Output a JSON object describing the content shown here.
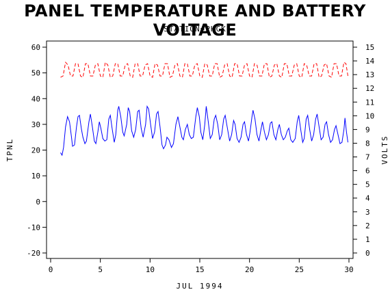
{
  "chart_data": {
    "type": "line",
    "title": "PANEL TEMPERATURE AND BATTERY VOLTAGE",
    "subtitle": "STATION=PHCK",
    "xlabel": "JUL 1994",
    "ylabel_left": "TPNL",
    "ylabel_right": "VOLTS",
    "xlim": [
      0,
      30
    ],
    "ylim_left": [
      -20,
      60
    ],
    "ylim_right": [
      0,
      15
    ],
    "x_ticks": [
      0,
      5,
      10,
      15,
      20,
      25,
      30
    ],
    "y_ticks_left": [
      -20,
      -10,
      0,
      10,
      20,
      30,
      40,
      50,
      60
    ],
    "y_ticks_right": [
      0,
      1,
      2,
      3,
      4,
      5,
      6,
      7,
      8,
      9,
      10,
      11,
      12,
      13,
      14,
      15
    ],
    "grid": false,
    "series": [
      {
        "axis": "left",
        "color": "#0000ff",
        "style": "solid",
        "points": [
          [
            1.0,
            19.0
          ],
          [
            1.15,
            18.0
          ],
          [
            1.3,
            21.0
          ],
          [
            1.5,
            29.0
          ],
          [
            1.7,
            33.0
          ],
          [
            1.9,
            31.0
          ],
          [
            2.1,
            25.0
          ],
          [
            2.2,
            21.5
          ],
          [
            2.4,
            22.0
          ],
          [
            2.6,
            29.0
          ],
          [
            2.75,
            33.0
          ],
          [
            2.9,
            33.5
          ],
          [
            3.1,
            28.0
          ],
          [
            3.25,
            25.0
          ],
          [
            3.45,
            22.5
          ],
          [
            3.6,
            23.5
          ],
          [
            3.85,
            31.0
          ],
          [
            4.0,
            34.0
          ],
          [
            4.2,
            29.0
          ],
          [
            4.4,
            23.5
          ],
          [
            4.55,
            22.5
          ],
          [
            4.75,
            27.0
          ],
          [
            4.9,
            31.0
          ],
          [
            5.05,
            28.5
          ],
          [
            5.25,
            24.5
          ],
          [
            5.45,
            23.5
          ],
          [
            5.65,
            24.0
          ],
          [
            5.85,
            32.0
          ],
          [
            6.0,
            33.5
          ],
          [
            6.2,
            28.0
          ],
          [
            6.4,
            23.0
          ],
          [
            6.55,
            26.0
          ],
          [
            6.75,
            35.5
          ],
          [
            6.85,
            37.0
          ],
          [
            7.05,
            33.0
          ],
          [
            7.25,
            27.0
          ],
          [
            7.4,
            25.5
          ],
          [
            7.65,
            30.0
          ],
          [
            7.8,
            36.5
          ],
          [
            7.95,
            35.0
          ],
          [
            8.15,
            27.5
          ],
          [
            8.35,
            25.0
          ],
          [
            8.55,
            28.0
          ],
          [
            8.75,
            35.0
          ],
          [
            8.9,
            35.5
          ],
          [
            9.1,
            28.5
          ],
          [
            9.3,
            25.0
          ],
          [
            9.55,
            30.0
          ],
          [
            9.7,
            37.0
          ],
          [
            9.85,
            36.0
          ],
          [
            10.05,
            30.0
          ],
          [
            10.25,
            24.5
          ],
          [
            10.45,
            27.0
          ],
          [
            10.65,
            34.0
          ],
          [
            10.8,
            35.0
          ],
          [
            11.0,
            29.0
          ],
          [
            11.2,
            22.0
          ],
          [
            11.35,
            20.5
          ],
          [
            11.55,
            22.0
          ],
          [
            11.7,
            25.0
          ],
          [
            11.9,
            24.0
          ],
          [
            12.15,
            21.0
          ],
          [
            12.35,
            22.5
          ],
          [
            12.6,
            30.0
          ],
          [
            12.8,
            33.0
          ],
          [
            13.0,
            29.0
          ],
          [
            13.2,
            25.0
          ],
          [
            13.35,
            24.0
          ],
          [
            13.55,
            28.0
          ],
          [
            13.75,
            30.0
          ],
          [
            13.95,
            26.0
          ],
          [
            14.15,
            24.5
          ],
          [
            14.35,
            25.0
          ],
          [
            14.6,
            33.0
          ],
          [
            14.75,
            36.5
          ],
          [
            14.95,
            33.0
          ],
          [
            15.1,
            27.0
          ],
          [
            15.3,
            24.0
          ],
          [
            15.5,
            30.0
          ],
          [
            15.65,
            37.0
          ],
          [
            15.85,
            31.0
          ],
          [
            16.05,
            24.5
          ],
          [
            16.25,
            26.0
          ],
          [
            16.45,
            32.0
          ],
          [
            16.6,
            33.5
          ],
          [
            16.8,
            30.0
          ],
          [
            17.0,
            24.0
          ],
          [
            17.2,
            26.0
          ],
          [
            17.4,
            32.0
          ],
          [
            17.55,
            33.5
          ],
          [
            17.8,
            28.0
          ],
          [
            18.0,
            23.5
          ],
          [
            18.2,
            26.0
          ],
          [
            18.4,
            31.5
          ],
          [
            18.55,
            30.0
          ],
          [
            18.75,
            24.5
          ],
          [
            18.95,
            23.0
          ],
          [
            19.15,
            25.0
          ],
          [
            19.35,
            30.0
          ],
          [
            19.5,
            31.0
          ],
          [
            19.7,
            26.0
          ],
          [
            19.9,
            23.5
          ],
          [
            20.05,
            27.0
          ],
          [
            20.25,
            33.0
          ],
          [
            20.35,
            35.5
          ],
          [
            20.55,
            32.0
          ],
          [
            20.75,
            26.0
          ],
          [
            20.95,
            23.5
          ],
          [
            21.15,
            28.0
          ],
          [
            21.3,
            31.0
          ],
          [
            21.5,
            27.0
          ],
          [
            21.7,
            24.0
          ],
          [
            21.9,
            26.0
          ],
          [
            22.1,
            30.5
          ],
          [
            22.25,
            31.0
          ],
          [
            22.45,
            26.0
          ],
          [
            22.65,
            24.0
          ],
          [
            22.85,
            28.0
          ],
          [
            23.0,
            30.0
          ],
          [
            23.2,
            26.0
          ],
          [
            23.4,
            24.0
          ],
          [
            23.6,
            25.0
          ],
          [
            23.8,
            27.5
          ],
          [
            23.95,
            28.5
          ],
          [
            24.15,
            24.0
          ],
          [
            24.35,
            23.0
          ],
          [
            24.6,
            24.5
          ],
          [
            24.8,
            31.0
          ],
          [
            24.95,
            33.5
          ],
          [
            25.15,
            28.0
          ],
          [
            25.35,
            23.0
          ],
          [
            25.5,
            24.5
          ],
          [
            25.7,
            32.0
          ],
          [
            25.85,
            33.5
          ],
          [
            26.05,
            28.0
          ],
          [
            26.25,
            23.5
          ],
          [
            26.45,
            26.0
          ],
          [
            26.65,
            32.0
          ],
          [
            26.8,
            34.0
          ],
          [
            27.0,
            29.0
          ],
          [
            27.2,
            24.0
          ],
          [
            27.4,
            25.0
          ],
          [
            27.6,
            30.0
          ],
          [
            27.75,
            31.0
          ],
          [
            27.95,
            26.0
          ],
          [
            28.15,
            23.0
          ],
          [
            28.35,
            24.0
          ],
          [
            28.55,
            28.0
          ],
          [
            28.7,
            29.5
          ],
          [
            28.9,
            26.0
          ],
          [
            29.1,
            22.5
          ],
          [
            29.3,
            23.0
          ],
          [
            29.5,
            28.0
          ],
          [
            29.6,
            32.5
          ],
          [
            29.75,
            27.0
          ],
          [
            29.9,
            23.0
          ]
        ]
      },
      {
        "axis": "right",
        "color": "#ff0000",
        "style": "dashed",
        "points": [
          [
            1.0,
            12.8
          ],
          [
            1.25,
            12.9
          ],
          [
            1.5,
            13.9
          ],
          [
            1.75,
            13.7
          ],
          [
            2.0,
            12.9
          ],
          [
            2.25,
            12.9
          ],
          [
            2.5,
            13.8
          ],
          [
            2.75,
            13.8
          ],
          [
            3.0,
            12.9
          ],
          [
            3.25,
            12.8
          ],
          [
            3.5,
            13.8
          ],
          [
            3.75,
            13.8
          ],
          [
            4.0,
            12.9
          ],
          [
            4.25,
            12.9
          ],
          [
            4.5,
            13.7
          ],
          [
            4.75,
            13.8
          ],
          [
            5.0,
            12.9
          ],
          [
            5.25,
            12.8
          ],
          [
            5.5,
            13.9
          ],
          [
            5.75,
            13.7
          ],
          [
            6.0,
            12.8
          ],
          [
            6.25,
            12.9
          ],
          [
            6.5,
            13.8
          ],
          [
            6.75,
            13.8
          ],
          [
            7.0,
            12.9
          ],
          [
            7.25,
            12.9
          ],
          [
            7.5,
            13.7
          ],
          [
            7.75,
            13.8
          ],
          [
            8.0,
            12.9
          ],
          [
            8.25,
            12.8
          ],
          [
            8.5,
            13.8
          ],
          [
            8.75,
            13.8
          ],
          [
            9.0,
            12.9
          ],
          [
            9.25,
            12.9
          ],
          [
            9.5,
            13.7
          ],
          [
            9.75,
            13.8
          ],
          [
            10.0,
            12.9
          ],
          [
            10.25,
            12.8
          ],
          [
            10.5,
            13.8
          ],
          [
            10.75,
            13.7
          ],
          [
            11.0,
            12.9
          ],
          [
            11.25,
            12.9
          ],
          [
            11.5,
            13.8
          ],
          [
            11.75,
            13.8
          ],
          [
            12.0,
            12.8
          ],
          [
            12.25,
            12.9
          ],
          [
            12.5,
            13.7
          ],
          [
            12.75,
            13.8
          ],
          [
            13.0,
            12.9
          ],
          [
            13.25,
            12.8
          ],
          [
            13.5,
            13.8
          ],
          [
            13.75,
            13.8
          ],
          [
            14.0,
            12.9
          ],
          [
            14.25,
            12.9
          ],
          [
            14.5,
            13.7
          ],
          [
            14.75,
            13.8
          ],
          [
            15.0,
            12.9
          ],
          [
            15.25,
            12.8
          ],
          [
            15.5,
            13.8
          ],
          [
            15.75,
            13.7
          ],
          [
            16.0,
            12.9
          ],
          [
            16.25,
            12.9
          ],
          [
            16.5,
            13.8
          ],
          [
            16.75,
            13.8
          ],
          [
            17.0,
            12.8
          ],
          [
            17.25,
            12.9
          ],
          [
            17.5,
            13.7
          ],
          [
            17.75,
            13.8
          ],
          [
            18.0,
            12.9
          ],
          [
            18.25,
            12.8
          ],
          [
            18.5,
            13.8
          ],
          [
            18.75,
            13.8
          ],
          [
            19.0,
            12.9
          ],
          [
            19.25,
            12.9
          ],
          [
            19.5,
            13.7
          ],
          [
            19.75,
            13.8
          ],
          [
            20.0,
            12.9
          ],
          [
            20.25,
            12.8
          ],
          [
            20.5,
            13.8
          ],
          [
            20.75,
            13.7
          ],
          [
            21.0,
            12.9
          ],
          [
            21.25,
            12.9
          ],
          [
            21.5,
            13.8
          ],
          [
            21.75,
            13.8
          ],
          [
            22.0,
            12.8
          ],
          [
            22.25,
            12.9
          ],
          [
            22.5,
            13.7
          ],
          [
            22.75,
            13.8
          ],
          [
            23.0,
            12.9
          ],
          [
            23.25,
            12.8
          ],
          [
            23.5,
            13.8
          ],
          [
            23.75,
            13.8
          ],
          [
            24.0,
            12.9
          ],
          [
            24.25,
            12.9
          ],
          [
            24.5,
            13.7
          ],
          [
            24.75,
            13.8
          ],
          [
            25.0,
            12.9
          ],
          [
            25.25,
            12.8
          ],
          [
            25.5,
            13.8
          ],
          [
            25.75,
            13.7
          ],
          [
            26.0,
            12.9
          ],
          [
            26.25,
            12.9
          ],
          [
            26.5,
            13.8
          ],
          [
            26.75,
            13.8
          ],
          [
            27.0,
            12.8
          ],
          [
            27.25,
            12.9
          ],
          [
            27.5,
            13.7
          ],
          [
            27.75,
            13.8
          ],
          [
            28.0,
            12.9
          ],
          [
            28.25,
            12.8
          ],
          [
            28.5,
            13.8
          ],
          [
            28.75,
            13.8
          ],
          [
            29.0,
            12.9
          ],
          [
            29.25,
            12.9
          ],
          [
            29.5,
            13.9
          ],
          [
            29.7,
            13.8
          ],
          [
            29.9,
            12.9
          ]
        ]
      }
    ]
  }
}
